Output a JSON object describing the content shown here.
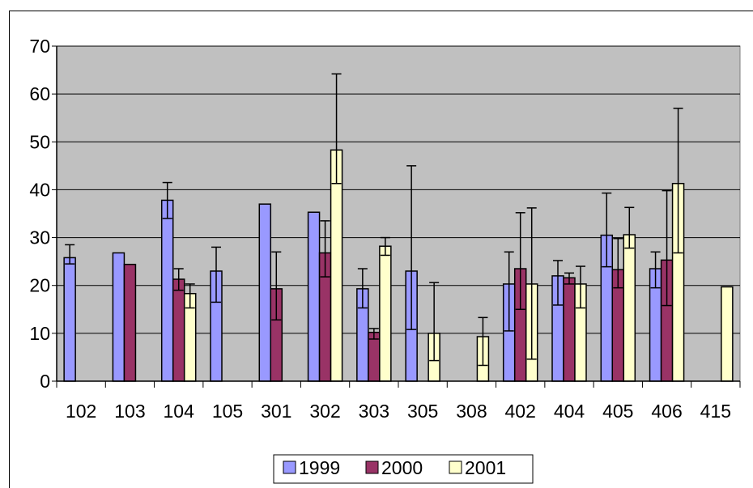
{
  "chart_data": {
    "type": "bar",
    "categories": [
      "102",
      "103",
      "104",
      "105",
      "301",
      "302",
      "303",
      "305",
      "308",
      "402",
      "404",
      "405",
      "406",
      "415"
    ],
    "series": [
      {
        "name": "1999",
        "color": "#9999ff",
        "values": [
          25.8,
          26.8,
          37.8,
          23.0,
          37.0,
          35.3,
          19.3,
          23.0,
          null,
          20.3,
          22.0,
          30.5,
          23.5,
          null
        ],
        "err_low": [
          24.5,
          null,
          34.0,
          16.5,
          null,
          null,
          15.3,
          10.8,
          null,
          10.5,
          15.9,
          23.9,
          19.5,
          null
        ],
        "err_high": [
          28.5,
          null,
          41.5,
          28.0,
          null,
          null,
          23.5,
          45.0,
          null,
          27.0,
          25.2,
          39.3,
          27.0,
          null
        ]
      },
      {
        "name": "2000",
        "color": "#993366",
        "values": [
          null,
          24.4,
          21.3,
          null,
          19.3,
          26.8,
          10.2,
          null,
          null,
          23.5,
          21.6,
          23.3,
          25.3,
          null
        ],
        "err_low": [
          null,
          null,
          19.0,
          null,
          12.8,
          21.8,
          8.8,
          null,
          null,
          15.0,
          20.3,
          19.5,
          15.8,
          null
        ],
        "err_high": [
          null,
          null,
          23.5,
          null,
          27.0,
          33.5,
          11.0,
          null,
          null,
          35.2,
          22.6,
          29.8,
          39.8,
          null
        ]
      },
      {
        "name": "2001",
        "color": "#ffffcc",
        "values": [
          null,
          null,
          18.3,
          null,
          null,
          48.3,
          28.2,
          10.0,
          9.3,
          20.3,
          20.3,
          30.6,
          41.3,
          19.7
        ],
        "err_low": [
          null,
          null,
          15.3,
          null,
          null,
          41.3,
          26.3,
          4.3,
          3.3,
          4.6,
          15.3,
          27.8,
          26.8,
          null
        ],
        "err_high": [
          null,
          null,
          20.3,
          null,
          null,
          64.2,
          30.0,
          20.6,
          13.3,
          36.2,
          24.0,
          36.3,
          57.0,
          null
        ]
      }
    ],
    "ylim": [
      0,
      70
    ],
    "yticks": [
      0,
      10,
      20,
      30,
      40,
      50,
      60,
      70
    ],
    "grid": true,
    "legend": "bottom",
    "plot_background": "#c0c0c0"
  }
}
